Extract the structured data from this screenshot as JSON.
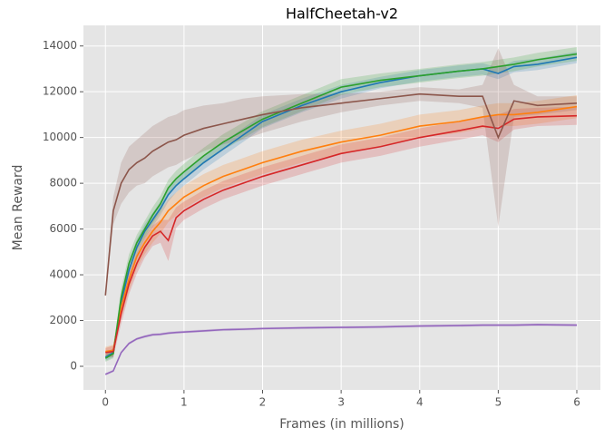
{
  "chart_data": {
    "type": "line",
    "title": "HalfCheetah-v2",
    "xlabel": "Frames (in millions)",
    "ylabel": "Mean Reward",
    "x": [
      0,
      0.1,
      0.2,
      0.3,
      0.4,
      0.5,
      0.6,
      0.7,
      0.8,
      0.9,
      1,
      1.25,
      1.5,
      1.75,
      2,
      2.5,
      3,
      3.5,
      4,
      4.5,
      4.8,
      5,
      5.2,
      5.5,
      6
    ],
    "series": [
      {
        "color": "#1f77b4",
        "values": [
          400,
          600,
          2800,
          4200,
          5200,
          5900,
          6400,
          6900,
          7500,
          7900,
          8200,
          8900,
          9500,
          10100,
          10700,
          11400,
          12000,
          12400,
          12700,
          12900,
          13000,
          12800,
          13100,
          13200,
          13500
        ],
        "spread": [
          150,
          200,
          400,
          400,
          350,
          300,
          300,
          300,
          300,
          300,
          300,
          300,
          300,
          300,
          300,
          300,
          300,
          250,
          250,
          250,
          250,
          250,
          250,
          250,
          250
        ]
      },
      {
        "color": "#ff7f0e",
        "values": [
          650,
          700,
          2600,
          3800,
          4800,
          5400,
          5900,
          6300,
          6800,
          7100,
          7400,
          7900,
          8300,
          8600,
          8900,
          9400,
          9800,
          10100,
          10500,
          10700,
          10900,
          11000,
          11000,
          11100,
          11350
        ],
        "spread": [
          200,
          250,
          500,
          500,
          500,
          500,
          500,
          500,
          500,
          500,
          500,
          500,
          500,
          500,
          500,
          500,
          500,
          500,
          500,
          500,
          500,
          500,
          500,
          500,
          500
        ]
      },
      {
        "color": "#2ca02c",
        "values": [
          350,
          550,
          3000,
          4500,
          5400,
          6000,
          6600,
          7100,
          7800,
          8200,
          8500,
          9200,
          9800,
          10300,
          10800,
          11500,
          12200,
          12500,
          12700,
          12900,
          13000,
          13100,
          13200,
          13400,
          13650
        ],
        "spread": [
          150,
          200,
          400,
          400,
          350,
          350,
          350,
          350,
          350,
          350,
          350,
          350,
          350,
          350,
          350,
          350,
          350,
          300,
          300,
          300,
          300,
          300,
          300,
          300,
          300
        ]
      },
      {
        "color": "#d62728",
        "values": [
          600,
          650,
          2300,
          3600,
          4500,
          5200,
          5700,
          5900,
          5500,
          6500,
          6800,
          7300,
          7700,
          8000,
          8300,
          8800,
          9300,
          9600,
          10000,
          10300,
          10500,
          10400,
          10800,
          10900,
          10950
        ],
        "spread": [
          200,
          250,
          450,
          450,
          450,
          450,
          450,
          500,
          900,
          450,
          400,
          400,
          400,
          400,
          400,
          400,
          400,
          400,
          400,
          400,
          400,
          600,
          450,
          400,
          400
        ]
      },
      {
        "color": "#9467bd",
        "values": [
          -350,
          -200,
          600,
          1000,
          1200,
          1300,
          1380,
          1400,
          1450,
          1480,
          1500,
          1550,
          1600,
          1620,
          1650,
          1680,
          1700,
          1720,
          1760,
          1780,
          1800,
          1800,
          1800,
          1820,
          1800
        ],
        "spread": [
          50,
          50,
          60,
          60,
          60,
          60,
          60,
          60,
          60,
          60,
          60,
          60,
          60,
          60,
          60,
          60,
          60,
          60,
          60,
          60,
          60,
          60,
          60,
          60,
          60
        ]
      },
      {
        "color": "#8c564b",
        "values": [
          3100,
          6800,
          8000,
          8600,
          8900,
          9100,
          9400,
          9600,
          9800,
          9900,
          10100,
          10400,
          10600,
          10800,
          11000,
          11300,
          11500,
          11700,
          11900,
          11800,
          11800,
          10000,
          11600,
          11400,
          11500
        ],
        "spread": [
          100,
          600,
          900,
          1000,
          1000,
          1100,
          1100,
          1100,
          1100,
          1100,
          1100,
          1000,
          900,
          900,
          800,
          600,
          400,
          300,
          300,
          300,
          500,
          3900,
          700,
          400,
          300
        ]
      }
    ],
    "xlim": [
      -0.28,
      6.3
    ],
    "xticks": [
      0,
      1,
      2,
      3,
      4,
      5,
      6
    ],
    "ylim": [
      -1030,
      14900
    ],
    "yticks": [
      0,
      2000,
      4000,
      6000,
      8000,
      10000,
      12000,
      14000
    ],
    "grid": true
  }
}
